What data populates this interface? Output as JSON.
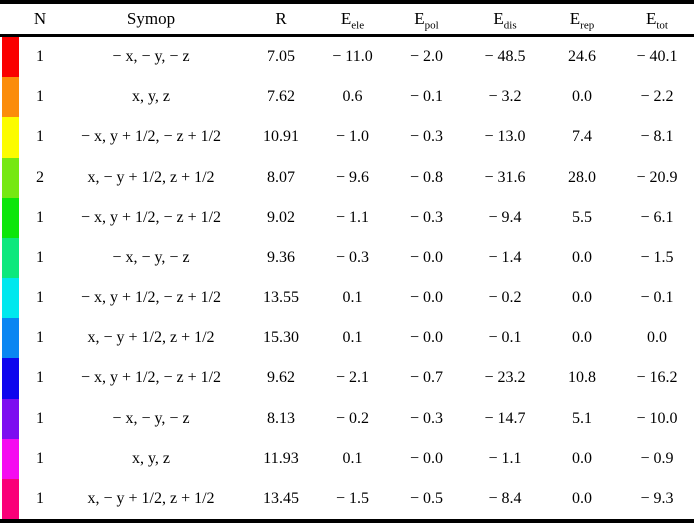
{
  "table": {
    "columns": [
      {
        "key": "n",
        "label": "N"
      },
      {
        "key": "symop",
        "label": "Symop"
      },
      {
        "key": "r",
        "label": "R"
      },
      {
        "key": "e_ele",
        "main": "E",
        "sub": "ele"
      },
      {
        "key": "e_pol",
        "main": "E",
        "sub": "pol"
      },
      {
        "key": "e_dis",
        "main": "E",
        "sub": "dis"
      },
      {
        "key": "e_rep",
        "main": "E",
        "sub": "rep"
      },
      {
        "key": "e_tot",
        "main": "E",
        "sub": "tot"
      }
    ],
    "rows": [
      {
        "color": "#FA0000",
        "n": "1",
        "symop": "− x, − y, − z",
        "r": "7.05",
        "e_ele": "− 11.0",
        "e_pol": "− 2.0",
        "e_dis": "− 48.5",
        "e_rep": "24.6",
        "e_tot": "− 40.1"
      },
      {
        "color": "#FB8C0A",
        "n": "1",
        "symop": "x, y, z",
        "r": "7.62",
        "e_ele": "0.6",
        "e_pol": "− 0.1",
        "e_dis": "− 3.2",
        "e_rep": "0.0",
        "e_tot": "− 2.2"
      },
      {
        "color": "#FCFC00",
        "n": "1",
        "symop": "− x, y + 1/2, − z + 1/2",
        "r": "10.91",
        "e_ele": "− 1.0",
        "e_pol": "− 0.3",
        "e_dis": "− 13.0",
        "e_rep": "7.4",
        "e_tot": "− 8.1"
      },
      {
        "color": "#76E812",
        "n": "2",
        "symop": "x, − y + 1/2, z + 1/2",
        "r": "8.07",
        "e_ele": "− 9.6",
        "e_pol": "− 0.8",
        "e_dis": "− 31.6",
        "e_rep": "28.0",
        "e_tot": "− 20.9"
      },
      {
        "color": "#0CE60A",
        "n": "1",
        "symop": "− x, y + 1/2, − z + 1/2",
        "r": "9.02",
        "e_ele": "− 1.1",
        "e_pol": "− 0.3",
        "e_dis": "− 9.4",
        "e_rep": "5.5",
        "e_tot": "− 6.1"
      },
      {
        "color": "#0DE87D",
        "n": "1",
        "symop": "− x, − y, − z",
        "r": "9.36",
        "e_ele": "− 0.3",
        "e_pol": "− 0.0",
        "e_dis": "− 1.4",
        "e_rep": "0.0",
        "e_tot": "− 1.5"
      },
      {
        "color": "#00E8EE",
        "n": "1",
        "symop": "− x, y + 1/2, − z + 1/2",
        "r": "13.55",
        "e_ele": "0.1",
        "e_pol": "− 0.0",
        "e_dis": "− 0.2",
        "e_rep": "0.0",
        "e_tot": "− 0.1"
      },
      {
        "color": "#0986F2",
        "n": "1",
        "symop": "x, − y + 1/2, z + 1/2",
        "r": "15.30",
        "e_ele": "0.1",
        "e_pol": "− 0.0",
        "e_dis": "− 0.1",
        "e_rep": "0.0",
        "e_tot": "0.0"
      },
      {
        "color": "#0D05EE",
        "n": "1",
        "symop": "− x, y + 1/2, − z + 1/2",
        "r": "9.62",
        "e_ele": "− 2.1",
        "e_pol": "− 0.7",
        "e_dis": "− 23.2",
        "e_rep": "10.8",
        "e_tot": "− 16.2"
      },
      {
        "color": "#7C0DF0",
        "n": "1",
        "symop": "− x, − y, − z",
        "r": "8.13",
        "e_ele": "− 0.2",
        "e_pol": "− 0.3",
        "e_dis": "− 14.7",
        "e_rep": "5.1",
        "e_tot": "− 10.0"
      },
      {
        "color": "#F50AF0",
        "n": "1",
        "symop": "x, y, z",
        "r": "11.93",
        "e_ele": "0.1",
        "e_pol": "− 0.0",
        "e_dis": "− 1.1",
        "e_rep": "0.0",
        "e_tot": "− 0.9"
      },
      {
        "color": "#FA0078",
        "n": "1",
        "symop": "x, − y + 1/2, z + 1/2",
        "r": "13.45",
        "e_ele": "− 1.5",
        "e_pol": "− 0.5",
        "e_dis": "− 8.4",
        "e_rep": "0.0",
        "e_tot": "− 9.3"
      }
    ]
  },
  "colors": {
    "border": "#000000",
    "background": "#ffffff"
  }
}
